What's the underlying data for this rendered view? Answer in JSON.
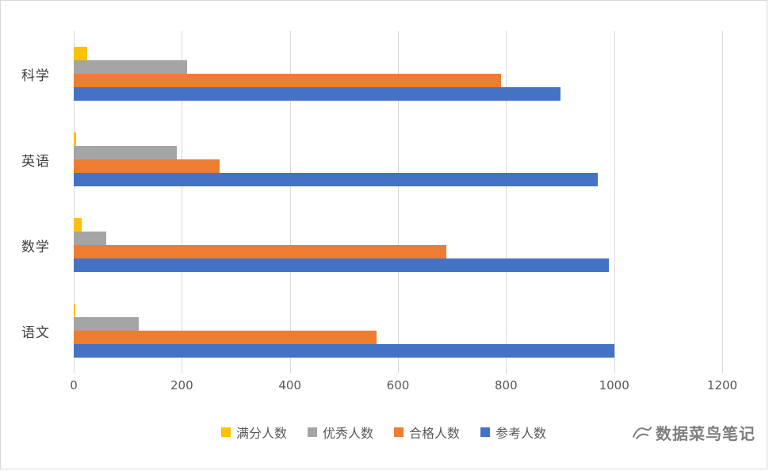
{
  "chart_data": {
    "type": "bar",
    "orientation": "horizontal",
    "title": "",
    "categories": [
      "科学",
      "英语",
      "数学",
      "语文"
    ],
    "series": [
      {
        "name": "满分人数",
        "color": "#FFC000",
        "values": [
          25,
          5,
          15,
          3
        ]
      },
      {
        "name": "优秀人数",
        "color": "#A5A5A5",
        "values": [
          210,
          190,
          60,
          120
        ]
      },
      {
        "name": "合格人数",
        "color": "#ED7D31",
        "values": [
          790,
          270,
          690,
          560
        ]
      },
      {
        "name": "参考人数",
        "color": "#4472C4",
        "values": [
          900,
          970,
          990,
          1000
        ]
      }
    ],
    "xlim": [
      0,
      1200
    ],
    "x_ticks": [
      "0",
      "200",
      "400",
      "600",
      "800",
      "1000",
      "1200"
    ],
    "grid": true,
    "legend_position": "bottom",
    "gridline_color": "#d9d9d9"
  },
  "watermark": {
    "text": "数据菜鸟笔记"
  }
}
